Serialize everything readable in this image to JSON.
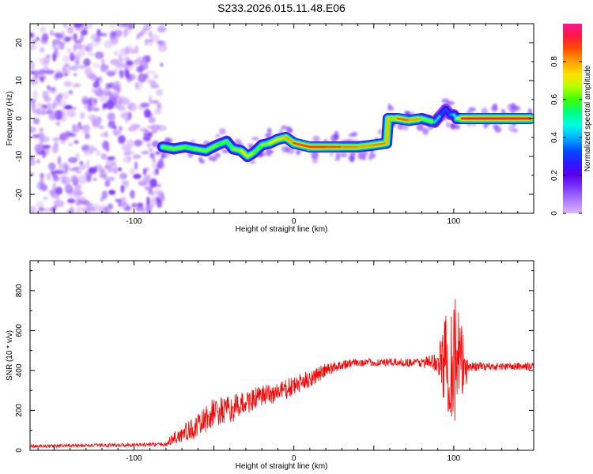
{
  "title": "S233.2026.015.11.48.E06",
  "chart_data": [
    {
      "type": "heatmap",
      "xlabel": "Height of straight line (km)",
      "ylabel": "Frequency (Hz)",
      "xlim": [
        -165,
        150
      ],
      "ylim": [
        -25,
        25
      ],
      "xticks": [
        -100,
        0,
        100
      ],
      "yticks": [
        -20,
        -10,
        0,
        10,
        20
      ],
      "colorbar": {
        "label": "Normalized spectral amplitude",
        "range": [
          0,
          1
        ],
        "ticks": [
          0,
          0.2,
          0.4,
          0.6,
          0.8
        ],
        "colormap": [
          "#d9b6ff",
          "#b07cff",
          "#7f3cff",
          "#5a00f0",
          "#2a1bff",
          "#0050ff",
          "#00b4ff",
          "#00ffe0",
          "#00ff80",
          "#40ff00",
          "#b4ff00",
          "#ffe000",
          "#ffa000",
          "#ff5000",
          "#ff1a40",
          "#ff1493"
        ]
      },
      "noise_region": {
        "x": [
          -165,
          -82
        ],
        "y": [
          -25,
          25
        ]
      },
      "ridge": {
        "x": [
          -82,
          -75,
          -68,
          -62,
          -55,
          -48,
          -42,
          -38,
          -33,
          -29,
          -25,
          -20,
          -15,
          -10,
          -5,
          0,
          10,
          20,
          30,
          40,
          50,
          58,
          59,
          65,
          72,
          80,
          88,
          92,
          95,
          98,
          100,
          102,
          105,
          110,
          120,
          130,
          140,
          148
        ],
        "y": [
          -7.5,
          -8,
          -7.5,
          -8,
          -8.5,
          -7,
          -6,
          -8,
          -8.5,
          -10,
          -9,
          -7,
          -6.5,
          -5.5,
          -5,
          -6.5,
          -7.5,
          -7.5,
          -7.5,
          -7.5,
          -7,
          -6.5,
          0,
          0,
          -0.5,
          0,
          -1,
          1,
          2.5,
          1,
          1,
          0,
          0,
          0,
          0,
          0,
          0,
          0
        ],
        "amplitude": [
          0.55,
          0.7,
          0.55,
          0.65,
          0.6,
          0.65,
          0.55,
          0.6,
          0.7,
          0.75,
          0.6,
          0.6,
          0.7,
          0.75,
          0.75,
          0.85,
          0.9,
          0.9,
          0.85,
          0.8,
          0.8,
          0.85,
          0.7,
          0.85,
          0.85,
          0.75,
          0.5,
          0.35,
          0.3,
          0.35,
          0.4,
          0.5,
          0.9,
          0.95,
          0.95,
          0.95,
          0.95,
          0.95
        ]
      }
    },
    {
      "type": "line",
      "xlabel": "Height of straight line (km)",
      "ylabel": "SNR (10 * v/v)",
      "xlim": [
        -165,
        150
      ],
      "ylim": [
        0,
        950
      ],
      "xticks": [
        -100,
        0,
        100
      ],
      "yticks": [
        0,
        200,
        400,
        600,
        800
      ],
      "color": "#ff0000",
      "envelope": {
        "x": [
          -165,
          -80,
          -75,
          -60,
          -50,
          -40,
          -30,
          -20,
          -10,
          0,
          10,
          20,
          30,
          40,
          50,
          60,
          70,
          80,
          90,
          95,
          100,
          105,
          110,
          120,
          130,
          140,
          150
        ],
        "y": [
          20,
          30,
          60,
          120,
          190,
          200,
          240,
          270,
          290,
          320,
          360,
          400,
          430,
          440,
          440,
          440,
          440,
          440,
          440,
          450,
          470,
          430,
          420,
          420,
          420,
          420,
          420
        ],
        "noise_amplitude": [
          8,
          10,
          40,
          60,
          75,
          70,
          60,
          55,
          55,
          50,
          45,
          35,
          25,
          20,
          20,
          20,
          20,
          25,
          50,
          250,
          380,
          200,
          25,
          20,
          20,
          20,
          20
        ]
      }
    }
  ]
}
